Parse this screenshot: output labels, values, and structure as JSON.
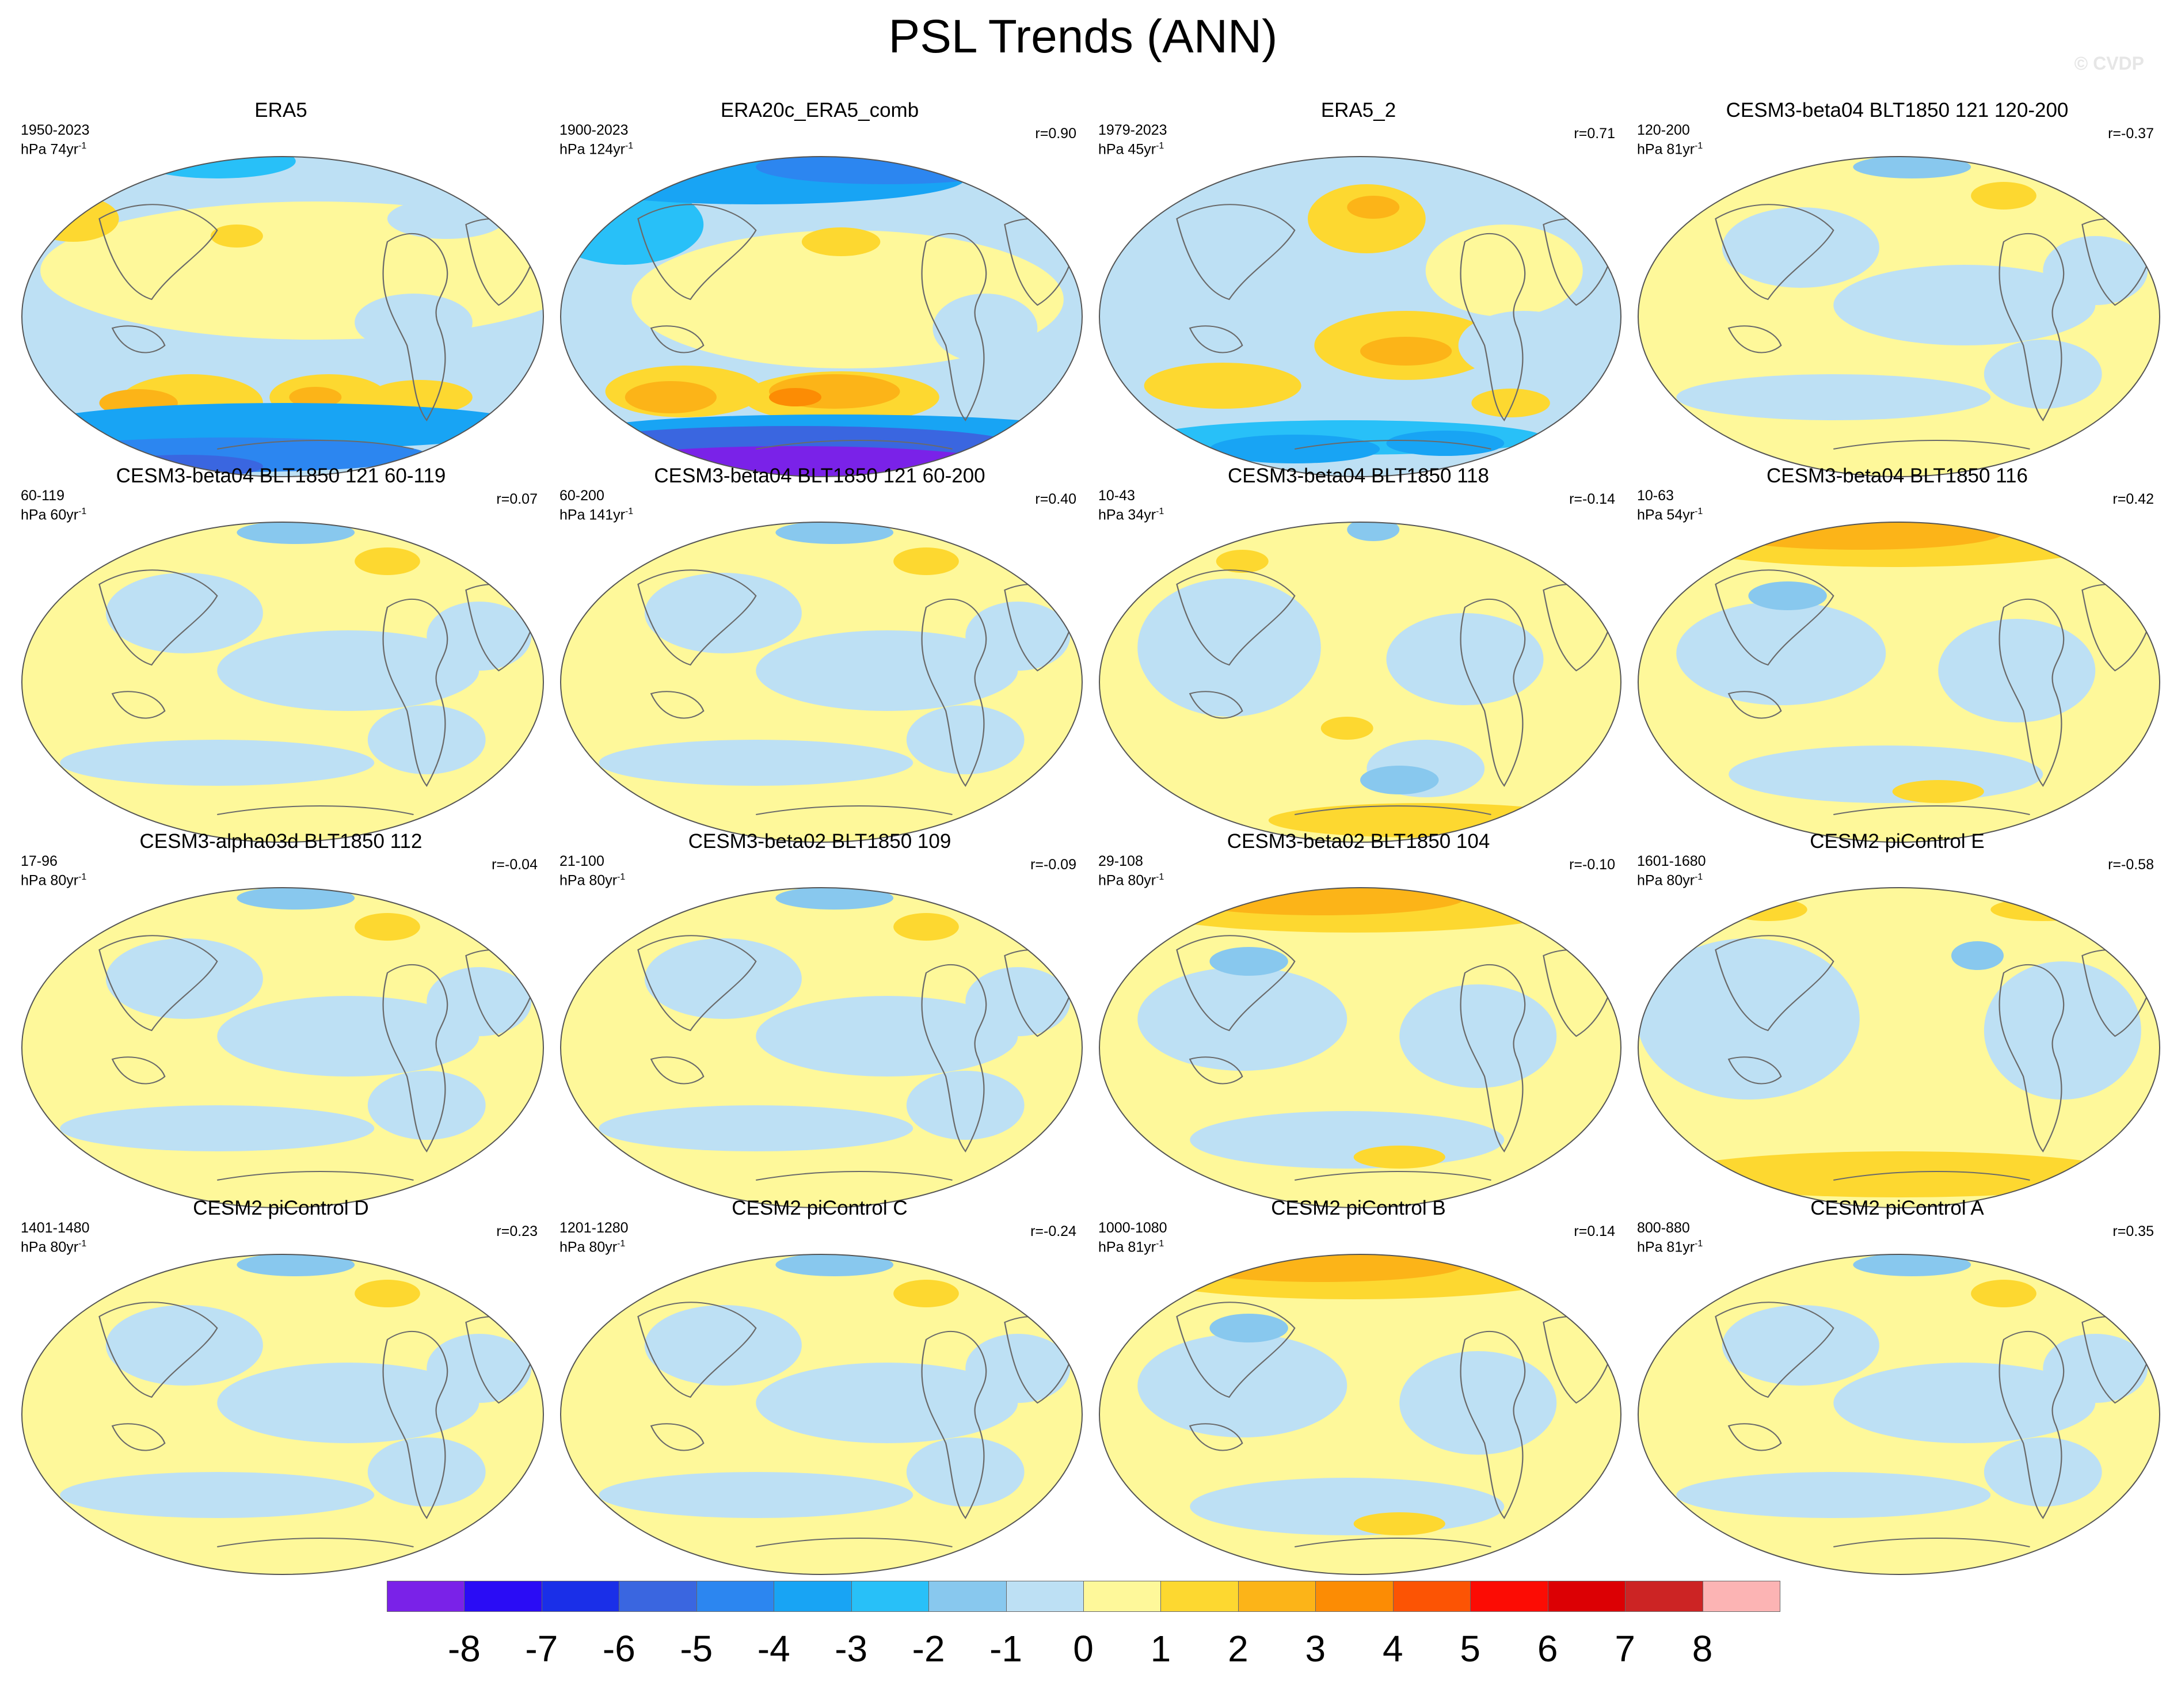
{
  "title": "PSL Trends (ANN)",
  "watermark": "© CVDP",
  "colorbar": {
    "labels": [
      "-8",
      "-7",
      "-6",
      "-5",
      "-4",
      "-3",
      "-2",
      "-1",
      "0",
      "1",
      "2",
      "3",
      "4",
      "5",
      "6",
      "7",
      "8"
    ],
    "colors": [
      "#7a22e8",
      "#2a0cf5",
      "#1a2fe8",
      "#3a66e0",
      "#2c86f0",
      "#18a4f4",
      "#28c0f8",
      "#88c8ee",
      "#bde0f4",
      "#fef89a",
      "#fdd830",
      "#fcb418",
      "#fc8c04",
      "#fc5404",
      "#fc0c04",
      "#dc0004",
      "#cc2424",
      "#fcb4b4"
    ]
  },
  "panels": [
    {
      "title": "ERA5",
      "years": "1950-2023",
      "units": "hPa 74yr",
      "corr": "",
      "pattern": "obs"
    },
    {
      "title": "ERA20c_ERA5_comb",
      "years": "1900-2023",
      "units": "hPa 124yr",
      "corr": "r=0.90",
      "pattern": "obs20c"
    },
    {
      "title": "ERA5_2",
      "years": "1979-2023",
      "units": "hPa 45yr",
      "corr": "r=0.71",
      "pattern": "obs2"
    },
    {
      "title": "CESM3-beta04 BLT1850 121 120-200",
      "years": "120-200",
      "units": "hPa 81yr",
      "corr": "r=-0.37",
      "pattern": "weak"
    },
    {
      "title": "CESM3-beta04 BLT1850 121 60-119",
      "years": "60-119",
      "units": "hPa 60yr",
      "corr": "r=0.07",
      "pattern": "weak"
    },
    {
      "title": "CESM3-beta04 BLT1850 121 60-200",
      "years": "60-200",
      "units": "hPa 141yr",
      "corr": "r=0.40",
      "pattern": "weak"
    },
    {
      "title": "CESM3-beta04 BLT1850 118",
      "years": "10-43",
      "units": "hPa 34yr",
      "corr": "r=-0.14",
      "pattern": "mixed"
    },
    {
      "title": "CESM3-beta04 BLT1850 116",
      "years": "10-63",
      "units": "hPa 54yr",
      "corr": "r=0.42",
      "pattern": "arctic"
    },
    {
      "title": "CESM3-alpha03d BLT1850 112",
      "years": "17-96",
      "units": "hPa 80yr",
      "corr": "r=-0.04",
      "pattern": "weak"
    },
    {
      "title": "CESM3-beta02 BLT1850 109",
      "years": "21-100",
      "units": "hPa 80yr",
      "corr": "r=-0.09",
      "pattern": "weak"
    },
    {
      "title": "CESM3-beta02 BLT1850 104",
      "years": "29-108",
      "units": "hPa 80yr",
      "corr": "r=-0.10",
      "pattern": "arctic"
    },
    {
      "title": "CESM2 piControl E",
      "years": "1601-1680",
      "units": "hPa 80yr",
      "corr": "r=-0.58",
      "pattern": "south"
    },
    {
      "title": "CESM2 piControl D",
      "years": "1401-1480",
      "units": "hPa 80yr",
      "corr": "r=0.23",
      "pattern": "weak"
    },
    {
      "title": "CESM2 piControl C",
      "years": "1201-1280",
      "units": "hPa 80yr",
      "corr": "r=-0.24",
      "pattern": "weak"
    },
    {
      "title": "CESM2 piControl B",
      "years": "1000-1080",
      "units": "hPa 81yr",
      "corr": "r=0.14",
      "pattern": "arctic"
    },
    {
      "title": "CESM2 piControl A",
      "years": "800-880",
      "units": "hPa 81yr",
      "corr": "r=0.35",
      "pattern": "weak"
    }
  ]
}
